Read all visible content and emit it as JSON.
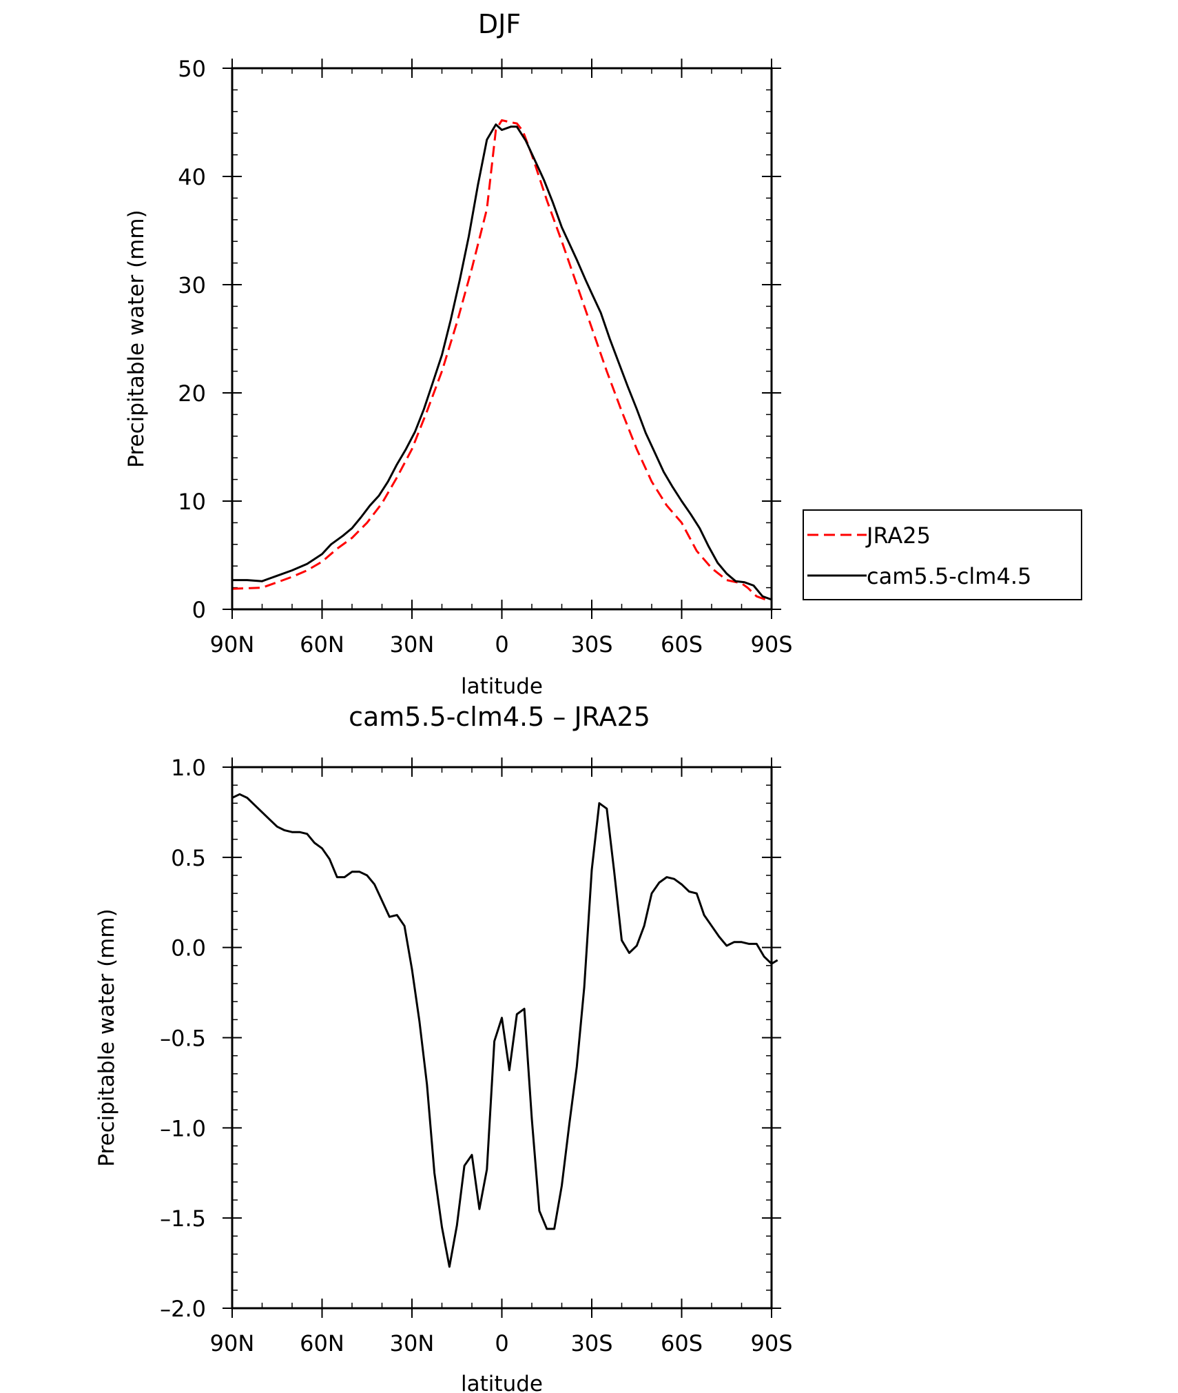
{
  "chart_data": [
    {
      "type": "line",
      "title": "DJF",
      "xlabel": "latitude",
      "ylabel": "Precipitable water (mm)",
      "xlim": [
        90,
        -90
      ],
      "ylim": [
        0,
        50
      ],
      "x_ticks": [
        {
          "value": 90,
          "label": "90N"
        },
        {
          "value": 60,
          "label": "60N"
        },
        {
          "value": 30,
          "label": "30N"
        },
        {
          "value": 0,
          "label": "0"
        },
        {
          "value": -30,
          "label": "30S"
        },
        {
          "value": -60,
          "label": "60S"
        },
        {
          "value": -90,
          "label": "90S"
        }
      ],
      "y_ticks": [
        {
          "value": 0,
          "label": "0"
        },
        {
          "value": 10,
          "label": "10"
        },
        {
          "value": 20,
          "label": "20"
        },
        {
          "value": 30,
          "label": "30"
        },
        {
          "value": 40,
          "label": "40"
        },
        {
          "value": 50,
          "label": "50"
        }
      ],
      "legend": {
        "placement": "right"
      },
      "series": [
        {
          "name": "JRA25",
          "color": "#ff0000",
          "dash": true,
          "points": [
            [
              90,
              1.9
            ],
            [
              80,
              2.0
            ],
            [
              75,
              2.5
            ],
            [
              70,
              3.0
            ],
            [
              65,
              3.6
            ],
            [
              60,
              4.4
            ],
            [
              55,
              5.6
            ],
            [
              50,
              6.6
            ],
            [
              45,
              8.0
            ],
            [
              40,
              9.8
            ],
            [
              35,
              12.2
            ],
            [
              30,
              14.8
            ],
            [
              25,
              18.3
            ],
            [
              20,
              22.0
            ],
            [
              15,
              26.5
            ],
            [
              10,
              31.5
            ],
            [
              5,
              37.0
            ],
            [
              2,
              44.3
            ],
            [
              0,
              45.2
            ],
            [
              -3,
              45.0
            ],
            [
              -5,
              44.9
            ],
            [
              -7,
              44.2
            ],
            [
              -10,
              42.0
            ],
            [
              -15,
              37.8
            ],
            [
              -20,
              34.0
            ],
            [
              -25,
              30.0
            ],
            [
              -30,
              26.0
            ],
            [
              -35,
              22.0
            ],
            [
              -40,
              18.3
            ],
            [
              -45,
              14.8
            ],
            [
              -50,
              11.8
            ],
            [
              -55,
              9.6
            ],
            [
              -60,
              8.0
            ],
            [
              -65,
              5.4
            ],
            [
              -70,
              3.8
            ],
            [
              -75,
              2.7
            ],
            [
              -80,
              2.4
            ],
            [
              -82,
              2.0
            ],
            [
              -85,
              1.2
            ],
            [
              -88,
              0.9
            ],
            [
              -90,
              0.9
            ]
          ]
        },
        {
          "name": "cam5.5-clm4.5",
          "color": "#000000",
          "dash": false,
          "points": [
            [
              90,
              2.7
            ],
            [
              85,
              2.7
            ],
            [
              80,
              2.6
            ],
            [
              78,
              2.8
            ],
            [
              75,
              3.1
            ],
            [
              70,
              3.6
            ],
            [
              65,
              4.2
            ],
            [
              60,
              5.1
            ],
            [
              57,
              6.0
            ],
            [
              53,
              6.8
            ],
            [
              50,
              7.5
            ],
            [
              47,
              8.5
            ],
            [
              44,
              9.6
            ],
            [
              41,
              10.5
            ],
            [
              38,
              11.8
            ],
            [
              35,
              13.4
            ],
            [
              32,
              14.8
            ],
            [
              29,
              16.4
            ],
            [
              26,
              18.5
            ],
            [
              23,
              21.0
            ],
            [
              20,
              23.5
            ],
            [
              17,
              26.8
            ],
            [
              14,
              30.5
            ],
            [
              11,
              34.5
            ],
            [
              8,
              39.2
            ],
            [
              5,
              43.4
            ],
            [
              2,
              44.8
            ],
            [
              0,
              44.3
            ],
            [
              -3,
              44.6
            ],
            [
              -5,
              44.6
            ],
            [
              -8,
              43.3
            ],
            [
              -11,
              41.5
            ],
            [
              -14,
              39.7
            ],
            [
              -17,
              37.6
            ],
            [
              -20,
              35.3
            ],
            [
              -25,
              32.3
            ],
            [
              -28,
              30.4
            ],
            [
              -30,
              29.2
            ],
            [
              -33,
              27.4
            ],
            [
              -36,
              25.0
            ],
            [
              -39,
              22.8
            ],
            [
              -42,
              20.6
            ],
            [
              -45,
              18.5
            ],
            [
              -48,
              16.3
            ],
            [
              -51,
              14.5
            ],
            [
              -54,
              12.7
            ],
            [
              -57,
              11.3
            ],
            [
              -60,
              10.0
            ],
            [
              -63,
              8.8
            ],
            [
              -66,
              7.5
            ],
            [
              -69,
              5.8
            ],
            [
              -72,
              4.3
            ],
            [
              -75,
              3.3
            ],
            [
              -78,
              2.6
            ],
            [
              -81,
              2.5
            ],
            [
              -84,
              2.2
            ],
            [
              -87,
              1.2
            ],
            [
              -90,
              0.9
            ]
          ]
        }
      ]
    },
    {
      "type": "line",
      "title": "cam5.5-clm4.5 – JRA25",
      "xlabel": "latitude",
      "ylabel": "Precipitable water (mm)",
      "xlim": [
        90,
        -90
      ],
      "ylim": [
        -2.0,
        1.0
      ],
      "x_ticks": [
        {
          "value": 90,
          "label": "90N"
        },
        {
          "value": 60,
          "label": "60N"
        },
        {
          "value": 30,
          "label": "30N"
        },
        {
          "value": 0,
          "label": "0"
        },
        {
          "value": -30,
          "label": "30S"
        },
        {
          "value": -60,
          "label": "60S"
        },
        {
          "value": -90,
          "label": "90S"
        }
      ],
      "y_ticks": [
        {
          "value": 1.0,
          "label": "1.0"
        },
        {
          "value": 0.5,
          "label": "0.5"
        },
        {
          "value": 0.0,
          "label": "0.0"
        },
        {
          "value": -0.5,
          "label": "–0.5"
        },
        {
          "value": -1.0,
          "label": "–1.0"
        },
        {
          "value": -1.5,
          "label": "–1.5"
        },
        {
          "value": -2.0,
          "label": "–2.0"
        }
      ],
      "series": [
        {
          "color": "#000000",
          "dash": false,
          "points": [
            [
              90,
              0.83
            ],
            [
              87.5,
              0.85
            ],
            [
              85,
              0.83
            ],
            [
              82.5,
              0.79
            ],
            [
              80,
              0.75
            ],
            [
              77.5,
              0.71
            ],
            [
              75,
              0.67
            ],
            [
              72.5,
              0.65
            ],
            [
              70,
              0.64
            ],
            [
              67.5,
              0.64
            ],
            [
              65,
              0.63
            ],
            [
              62.5,
              0.58
            ],
            [
              60,
              0.55
            ],
            [
              57.5,
              0.49
            ],
            [
              55,
              0.39
            ],
            [
              52.5,
              0.39
            ],
            [
              50,
              0.42
            ],
            [
              47.5,
              0.42
            ],
            [
              45,
              0.4
            ],
            [
              42.5,
              0.35
            ],
            [
              40,
              0.26
            ],
            [
              37.5,
              0.17
            ],
            [
              35,
              0.18
            ],
            [
              32.5,
              0.12
            ],
            [
              30,
              -0.12
            ],
            [
              27.5,
              -0.41
            ],
            [
              25,
              -0.76
            ],
            [
              22.5,
              -1.25
            ],
            [
              20,
              -1.55
            ],
            [
              17.5,
              -1.77
            ],
            [
              15,
              -1.54
            ],
            [
              12.5,
              -1.21
            ],
            [
              10,
              -1.15
            ],
            [
              7.5,
              -1.45
            ],
            [
              5,
              -1.23
            ],
            [
              2.5,
              -0.52
            ],
            [
              0,
              -0.39
            ],
            [
              -2.5,
              -0.68
            ],
            [
              -5,
              -0.37
            ],
            [
              -7.5,
              -0.34
            ],
            [
              -10,
              -0.95
            ],
            [
              -12.5,
              -1.46
            ],
            [
              -15,
              -1.56
            ],
            [
              -17.5,
              -1.56
            ],
            [
              -20,
              -1.32
            ],
            [
              -22.5,
              -0.98
            ],
            [
              -25,
              -0.66
            ],
            [
              -27.5,
              -0.22
            ],
            [
              -30,
              0.43
            ],
            [
              -32.5,
              0.8
            ],
            [
              -35,
              0.77
            ],
            [
              -37.5,
              0.42
            ],
            [
              -40,
              0.04
            ],
            [
              -42.5,
              -0.03
            ],
            [
              -45,
              0.01
            ],
            [
              -47.5,
              0.12
            ],
            [
              -50,
              0.3
            ],
            [
              -52.5,
              0.36
            ],
            [
              -55,
              0.39
            ],
            [
              -57.5,
              0.38
            ],
            [
              -60,
              0.35
            ],
            [
              -62.5,
              0.31
            ],
            [
              -65,
              0.3
            ],
            [
              -67.5,
              0.18
            ],
            [
              -70,
              0.12
            ],
            [
              -72.5,
              0.06
            ],
            [
              -75,
              0.01
            ],
            [
              -77.5,
              0.03
            ],
            [
              -80,
              0.03
            ],
            [
              -82.5,
              0.02
            ],
            [
              -85,
              0.02
            ],
            [
              -87.5,
              -0.05
            ],
            [
              -90,
              -0.09
            ],
            [
              -92,
              -0.07
            ]
          ]
        }
      ]
    }
  ]
}
